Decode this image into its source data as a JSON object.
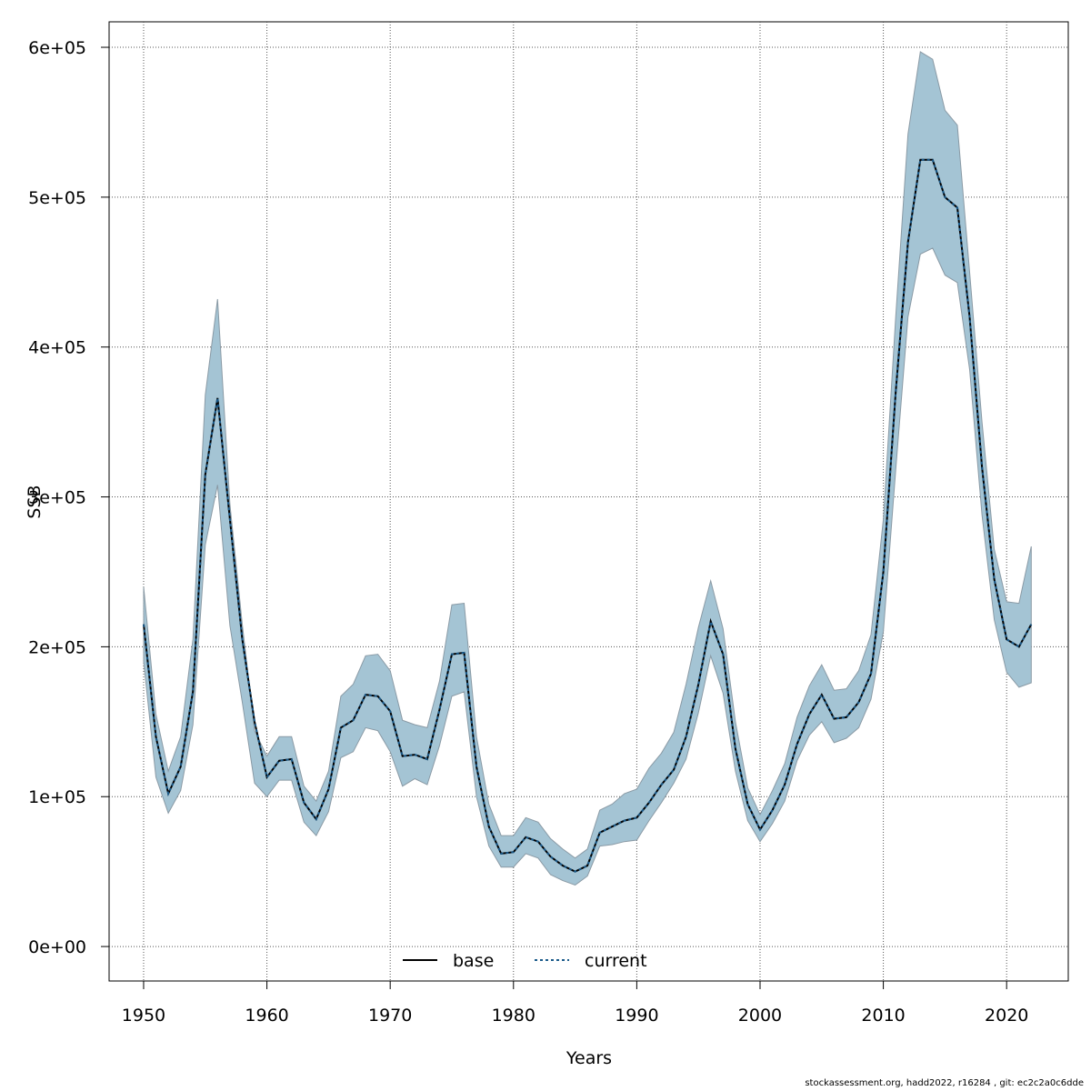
{
  "chart_data": {
    "type": "area",
    "xlabel": "Years",
    "ylabel": "SSB",
    "xlim": [
      1947.2,
      2025.0
    ],
    "ylim": [
      -23000,
      617000
    ],
    "x_ticks": [
      1950,
      1960,
      1970,
      1980,
      1990,
      2000,
      2010,
      2020
    ],
    "x_tick_labels": [
      "1950",
      "1960",
      "1970",
      "1980",
      "1990",
      "2000",
      "2010",
      "2020"
    ],
    "y_ticks": [
      0,
      100000,
      200000,
      300000,
      400000,
      500000,
      600000
    ],
    "y_tick_labels": [
      "0e+00",
      "1e+05",
      "2e+05",
      "3e+05",
      "4e+05",
      "5e+05",
      "6e+05"
    ],
    "grid": true,
    "legend": {
      "position": "bottom-center",
      "entries": [
        "base",
        "current"
      ]
    },
    "colors": {
      "band": "#a4c4d4",
      "band_edge": "#8a9aa5",
      "base": "#000000",
      "current": "#1a5a8a"
    },
    "x": [
      1950,
      1951,
      1952,
      1953,
      1954,
      1955,
      1956,
      1957,
      1958,
      1959,
      1960,
      1961,
      1962,
      1963,
      1964,
      1965,
      1966,
      1967,
      1968,
      1969,
      1970,
      1971,
      1972,
      1973,
      1974,
      1975,
      1976,
      1977,
      1978,
      1979,
      1980,
      1981,
      1982,
      1983,
      1984,
      1985,
      1986,
      1987,
      1988,
      1989,
      1990,
      1991,
      1992,
      1993,
      1994,
      1995,
      1996,
      1997,
      1998,
      1999,
      2000,
      2001,
      2002,
      2003,
      2004,
      2005,
      2006,
      2007,
      2008,
      2009,
      2010,
      2011,
      2012,
      2013,
      2014,
      2015,
      2016,
      2017,
      2018,
      2019,
      2020,
      2021,
      2022
    ],
    "series": [
      {
        "name": "base",
        "values": [
          215000,
          140000,
          102000,
          120000,
          170000,
          315000,
          366000,
          285000,
          205000,
          150000,
          113000,
          124000,
          125000,
          96000,
          85000,
          105000,
          146000,
          151000,
          168000,
          167000,
          157000,
          127000,
          128000,
          125000,
          158000,
          195000,
          196000,
          120000,
          80000,
          62000,
          63000,
          73000,
          70000,
          60000,
          54000,
          50000,
          54000,
          76000,
          80000,
          84000,
          86000,
          96000,
          108000,
          118000,
          140000,
          175000,
          217000,
          195000,
          132000,
          95000,
          78000,
          91000,
          108000,
          135000,
          155000,
          168000,
          152000,
          153000,
          163000,
          182000,
          250000,
          370000,
          470000,
          525000,
          525000,
          500000,
          493000,
          420000,
          320000,
          245000,
          205000,
          200000,
          215000
        ]
      },
      {
        "name": "current",
        "values": [
          215000,
          140000,
          102000,
          120000,
          170000,
          315000,
          366000,
          285000,
          205000,
          150000,
          113000,
          124000,
          125000,
          96000,
          85000,
          105000,
          146000,
          151000,
          168000,
          167000,
          157000,
          127000,
          128000,
          125000,
          158000,
          195000,
          196000,
          120000,
          80000,
          62000,
          63000,
          73000,
          70000,
          60000,
          54000,
          50000,
          54000,
          76000,
          80000,
          84000,
          86000,
          96000,
          108000,
          118000,
          140000,
          175000,
          217000,
          195000,
          132000,
          95000,
          78000,
          91000,
          108000,
          135000,
          155000,
          168000,
          152000,
          153000,
          163000,
          182000,
          250000,
          370000,
          470000,
          525000,
          525000,
          500000,
          493000,
          420000,
          320000,
          245000,
          205000,
          200000,
          215000
        ]
      }
    ],
    "band_upper": [
      240000,
      155000,
      117000,
      140000,
      205000,
      368000,
      432000,
      295000,
      215000,
      144000,
      127000,
      140000,
      140000,
      107000,
      97000,
      117000,
      167000,
      175000,
      194000,
      195000,
      184000,
      151000,
      148000,
      146000,
      177000,
      228000,
      229000,
      140000,
      95000,
      74000,
      74000,
      86000,
      83000,
      72000,
      65000,
      59000,
      65000,
      91000,
      95000,
      102000,
      105000,
      119000,
      129000,
      143000,
      175000,
      213000,
      244000,
      212000,
      150000,
      106000,
      88000,
      104000,
      122000,
      153000,
      174000,
      188000,
      171000,
      172000,
      184000,
      208000,
      285000,
      420000,
      542000,
      597000,
      592000,
      558000,
      548000,
      450000,
      350000,
      265000,
      230000,
      229000,
      267000
    ],
    "band_lower": [
      190000,
      113000,
      89000,
      104000,
      148000,
      268000,
      308000,
      214000,
      163000,
      109000,
      100000,
      111000,
      111000,
      83000,
      74000,
      90000,
      126000,
      130000,
      146000,
      144000,
      130000,
      107000,
      112000,
      108000,
      134000,
      167000,
      170000,
      100000,
      67000,
      53000,
      53000,
      62000,
      59000,
      48000,
      44000,
      41000,
      47000,
      67000,
      68000,
      70000,
      71000,
      84000,
      96000,
      109000,
      125000,
      156000,
      194000,
      169000,
      117000,
      84000,
      70000,
      82000,
      97000,
      124000,
      141000,
      150000,
      136000,
      139000,
      146000,
      165000,
      210000,
      318000,
      420000,
      462000,
      466000,
      448000,
      443000,
      385000,
      288000,
      218000,
      183000,
      173000,
      176000
    ]
  },
  "footer": "stockassessment.org, hadd2022, r16284 , git: ec2c2a0c6dde"
}
